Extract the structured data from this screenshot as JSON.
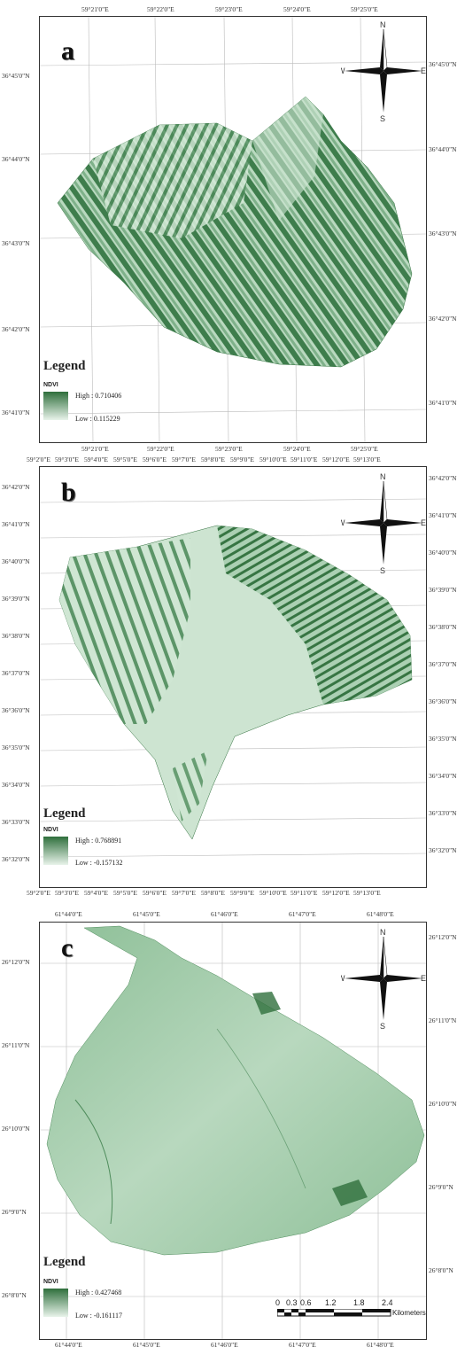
{
  "colors": {
    "high": "#2f6f3c",
    "low": "#e8f3ea",
    "frame": "#333333"
  },
  "compass": {
    "n": "N",
    "s": "S",
    "e": "E",
    "w": "W",
    "icon": "north-arrow-compass-icon"
  },
  "maps": [
    {
      "letter": "a",
      "top_ticks": [
        "59°21'0\"E",
        "59°22'0\"E",
        "59°23'0\"E",
        "59°24'0\"E",
        "59°25'0\"E"
      ],
      "bottom_ticks": [
        "59°21'0\"E",
        "59°22'0\"E",
        "59°23'0\"E",
        "59°24'0\"E",
        "59°25'0\"E"
      ],
      "left_ticks": [
        "36°45'0\"N",
        "36°44'0\"N",
        "36°43'0\"N",
        "36°42'0\"N",
        "36°41'0\"N"
      ],
      "right_ticks": [
        "36°45'0\"N",
        "36°44'0\"N",
        "36°43'0\"N",
        "36°42'0\"N",
        "36°41'0\"N"
      ],
      "legend": {
        "title": "Legend",
        "layer": "NDVI",
        "high": "High : 0.710406",
        "low": "Low : 0.115229"
      }
    },
    {
      "letter": "b",
      "top_ticks": [
        "59°2'0\"E",
        "59°3'0\"E",
        "59°4'0\"E",
        "59°5'0\"E",
        "59°6'0\"E",
        "59°7'0\"E",
        "59°8'0\"E",
        "59°9'0\"E",
        "59°10'0\"E",
        "59°11'0\"E",
        "59°12'0\"E",
        "59°13'0\"E"
      ],
      "bottom_ticks": [
        "59°2'0\"E",
        "59°3'0\"E",
        "59°4'0\"E",
        "59°5'0\"E",
        "59°6'0\"E",
        "59°7'0\"E",
        "59°8'0\"E",
        "59°9'0\"E",
        "59°10'0\"E",
        "59°11'0\"E",
        "59°12'0\"E",
        "59°13'0\"E"
      ],
      "left_ticks": [
        "36°42'0\"N",
        "36°41'0\"N",
        "36°40'0\"N",
        "36°39'0\"N",
        "36°38'0\"N",
        "36°37'0\"N",
        "36°36'0\"N",
        "36°35'0\"N",
        "36°34'0\"N",
        "36°33'0\"N",
        "36°32'0\"N"
      ],
      "right_ticks": [
        "36°42'0\"N",
        "36°41'0\"N",
        "36°40'0\"N",
        "36°39'0\"N",
        "36°38'0\"N",
        "36°37'0\"N",
        "36°36'0\"N",
        "36°35'0\"N",
        "36°34'0\"N",
        "36°33'0\"N",
        "36°32'0\"N"
      ],
      "legend": {
        "title": "Legend",
        "layer": "NDVI",
        "high": "High : 0.768891",
        "low": "Low : -0.157132"
      }
    },
    {
      "letter": "c",
      "top_ticks": [
        "61°44'0\"E",
        "61°45'0\"E",
        "61°46'0\"E",
        "61°47'0\"E",
        "61°48'0\"E"
      ],
      "bottom_ticks": [
        "61°44'0\"E",
        "61°45'0\"E",
        "61°46'0\"E",
        "61°47'0\"E",
        "61°48'0\"E"
      ],
      "left_ticks": [
        "26°12'0\"N",
        "26°11'0\"N",
        "26°10'0\"N",
        "26°9'0\"N",
        "26°8'0\"N"
      ],
      "right_ticks": [
        "26°12'0\"N",
        "26°11'0\"N",
        "26°10'0\"N",
        "26°9'0\"N",
        "26°8'0\"N"
      ],
      "legend": {
        "title": "Legend",
        "layer": "NDVI",
        "high": "High : 0.427468",
        "low": "Low : -0.161117"
      },
      "scale": {
        "labels": [
          "0",
          "0.3",
          "0.6",
          "1.2",
          "1.8",
          "2.4"
        ],
        "unit": "Kilometers"
      }
    }
  ]
}
